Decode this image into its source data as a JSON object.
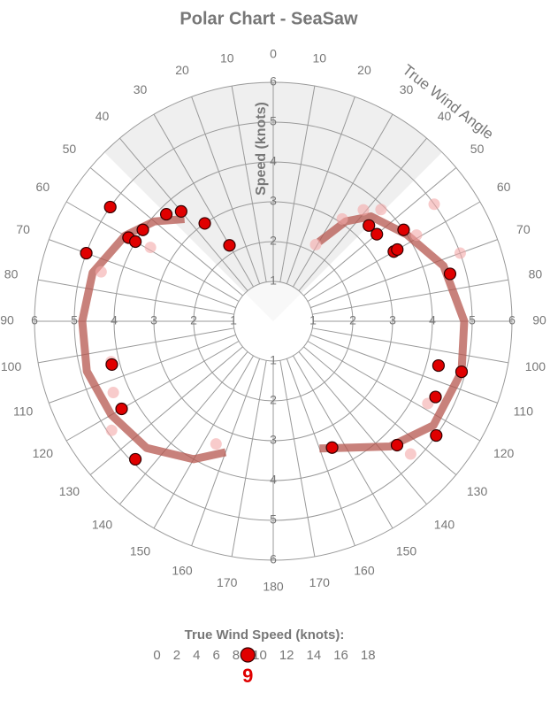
{
  "chart_data": {
    "type": "polar",
    "title": "Polar Chart - SeaSaw",
    "radial_axis_label": "Speed (knots)",
    "angle_axis_label": "True Wind Angle",
    "rlim": [
      0,
      6
    ],
    "rticks": [
      1,
      2,
      3,
      4,
      5,
      6
    ],
    "angle_ticks": [
      0,
      10,
      20,
      30,
      40,
      50,
      60,
      70,
      80,
      90,
      100,
      110,
      120,
      130,
      140,
      150,
      160,
      170,
      180
    ],
    "grid": true,
    "polar": {
      "color": "#b5574f",
      "x": [
        -160,
        -150,
        -135,
        -120,
        -105,
        -90,
        -75,
        -60,
        -50,
        -41,
        null,
        30,
        36,
        43,
        57,
        72,
        90,
        105,
        123,
        137,
        160
      ],
      "values": [
        3.5,
        4.0,
        4.5,
        4.7,
        4.85,
        4.8,
        4.7,
        4.3,
        3.9,
        3.4,
        null,
        2.3,
        3.1,
        3.6,
        4.0,
        4.5,
        4.8,
        4.9,
        4.8,
        4.3,
        3.4
      ]
    },
    "faded_points": {
      "color": "#f3a9a9",
      "x": [
        -74,
        -59,
        -104,
        -114,
        -124,
        -155,
        29,
        34,
        39,
        44,
        59,
        54,
        70,
        118,
        134
      ],
      "values": [
        4.5,
        3.6,
        4.2,
        4.4,
        4.9,
        3.4,
        2.2,
        3.1,
        3.6,
        3.9,
        4.2,
        5.0,
        5.0,
        4.4,
        4.8
      ]
    },
    "points": {
      "color": "#e00000",
      "x": [
        -55,
        -70,
        -45,
        -40,
        -35,
        -30,
        -55,
        -60,
        -60,
        -105,
        -120,
        -135,
        45,
        50,
        55,
        60,
        60,
        75,
        105,
        105,
        115,
        125,
        135,
        155
      ],
      "values": [
        5.0,
        5.0,
        3.8,
        3.6,
        3.0,
        2.2,
        4.0,
        4.2,
        4.0,
        4.2,
        4.4,
        4.9,
        3.4,
        3.4,
        4.0,
        3.5,
        3.6,
        4.6,
        4.9,
        4.3,
        4.5,
        5.0,
        4.4,
        3.5
      ]
    },
    "wind_speed_selector": {
      "label": "True Wind Speed (knots):",
      "ticks": [
        0,
        2,
        4,
        6,
        8,
        10,
        12,
        14,
        16,
        18
      ],
      "value": 9,
      "color": "#e00000"
    }
  }
}
